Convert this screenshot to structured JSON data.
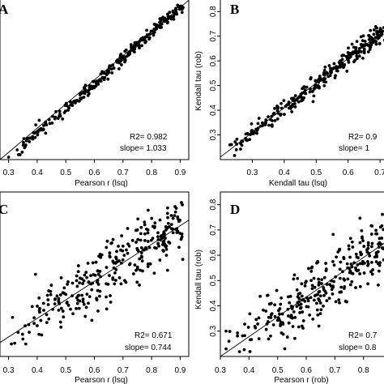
{
  "chart_data": [
    {
      "type": "scatter",
      "panel": "A",
      "xlabel": "Pearson r (lsq)",
      "ylabel": "",
      "xlim": [
        0.27,
        0.93
      ],
      "ylim": [
        0.27,
        0.93
      ],
      "xticks": [
        "0.3",
        "0.4",
        "0.5",
        "0.6",
        "0.7",
        "0.8",
        "0.9"
      ],
      "yticks": [],
      "stats": [
        "R2= 0.982",
        "slope= 1.033"
      ],
      "fit": {
        "slope": 1.033,
        "intercept": -0.035
      },
      "scatter": {
        "seed": 11,
        "n": 280,
        "xmin": 0.3,
        "xmax": 0.91,
        "noise": 0.013
      },
      "extra_points": [
        [
          0.3,
          0.28
        ],
        [
          0.34,
          0.29
        ],
        [
          0.33,
          0.31
        ],
        [
          0.36,
          0.33
        ]
      ]
    },
    {
      "type": "scatter",
      "panel": "B",
      "xlabel": "Kendall tau (lsq)",
      "ylabel": "Kendall tau (rob)",
      "xlim": [
        0.2,
        0.72
      ],
      "ylim": [
        0.2,
        0.85
      ],
      "xticks": [
        "0.3",
        "0.4",
        "0.5",
        "0.6",
        "0.7"
      ],
      "yticks": [
        "0.3",
        "0.4",
        "0.5",
        "0.6",
        "0.7",
        "0.8"
      ],
      "stats": [
        "R2= 0.9",
        "slope= 1"
      ],
      "fit": {
        "slope": 1.0,
        "intercept": 0.01
      },
      "scatter": {
        "seed": 23,
        "n": 300,
        "xmin": 0.22,
        "xmax": 0.72,
        "noise": 0.018
      },
      "extra_points": [
        [
          0.23,
          0.26
        ],
        [
          0.25,
          0.24
        ],
        [
          0.28,
          0.28
        ]
      ]
    },
    {
      "type": "scatter",
      "panel": "C",
      "xlabel": "Pearson r (lsq)",
      "ylabel": "",
      "xlim": [
        0.27,
        0.93
      ],
      "ylim": [
        0.27,
        0.93
      ],
      "xticks": [
        "0.3",
        "0.4",
        "0.5",
        "0.6",
        "0.7",
        "0.8",
        "0.9"
      ],
      "yticks": [],
      "stats": [
        "R2= 0.671",
        "slope= 0.744"
      ],
      "fit": {
        "slope": 0.744,
        "intercept": 0.125
      },
      "scatter": {
        "seed": 37,
        "n": 300,
        "xmin": 0.3,
        "xmax": 0.91,
        "noise": 0.06
      },
      "extra_points": [
        [
          0.31,
          0.32
        ],
        [
          0.35,
          0.34
        ],
        [
          0.36,
          0.32
        ]
      ]
    },
    {
      "type": "scatter",
      "panel": "D",
      "xlabel": "Pearson r (rob)",
      "ylabel": "Kendall tau (rob)",
      "xlim": [
        0.3,
        0.88
      ],
      "ylim": [
        0.2,
        0.85
      ],
      "xticks": [
        "0.3",
        "0.4",
        "0.5",
        "0.6",
        "0.7",
        "0.8"
      ],
      "yticks": [
        "0.3",
        "0.4",
        "0.5",
        "0.6",
        "0.7",
        "0.8"
      ],
      "stats": [
        "R2= 0.7",
        "slope= 0.8"
      ],
      "fit": {
        "slope": 0.8,
        "intercept": -0.05
      },
      "scatter": {
        "seed": 51,
        "n": 300,
        "xmin": 0.32,
        "xmax": 0.88,
        "noise": 0.06
      },
      "extra_points": [
        [
          0.32,
          0.23
        ],
        [
          0.33,
          0.26
        ],
        [
          0.32,
          0.3
        ]
      ]
    }
  ]
}
